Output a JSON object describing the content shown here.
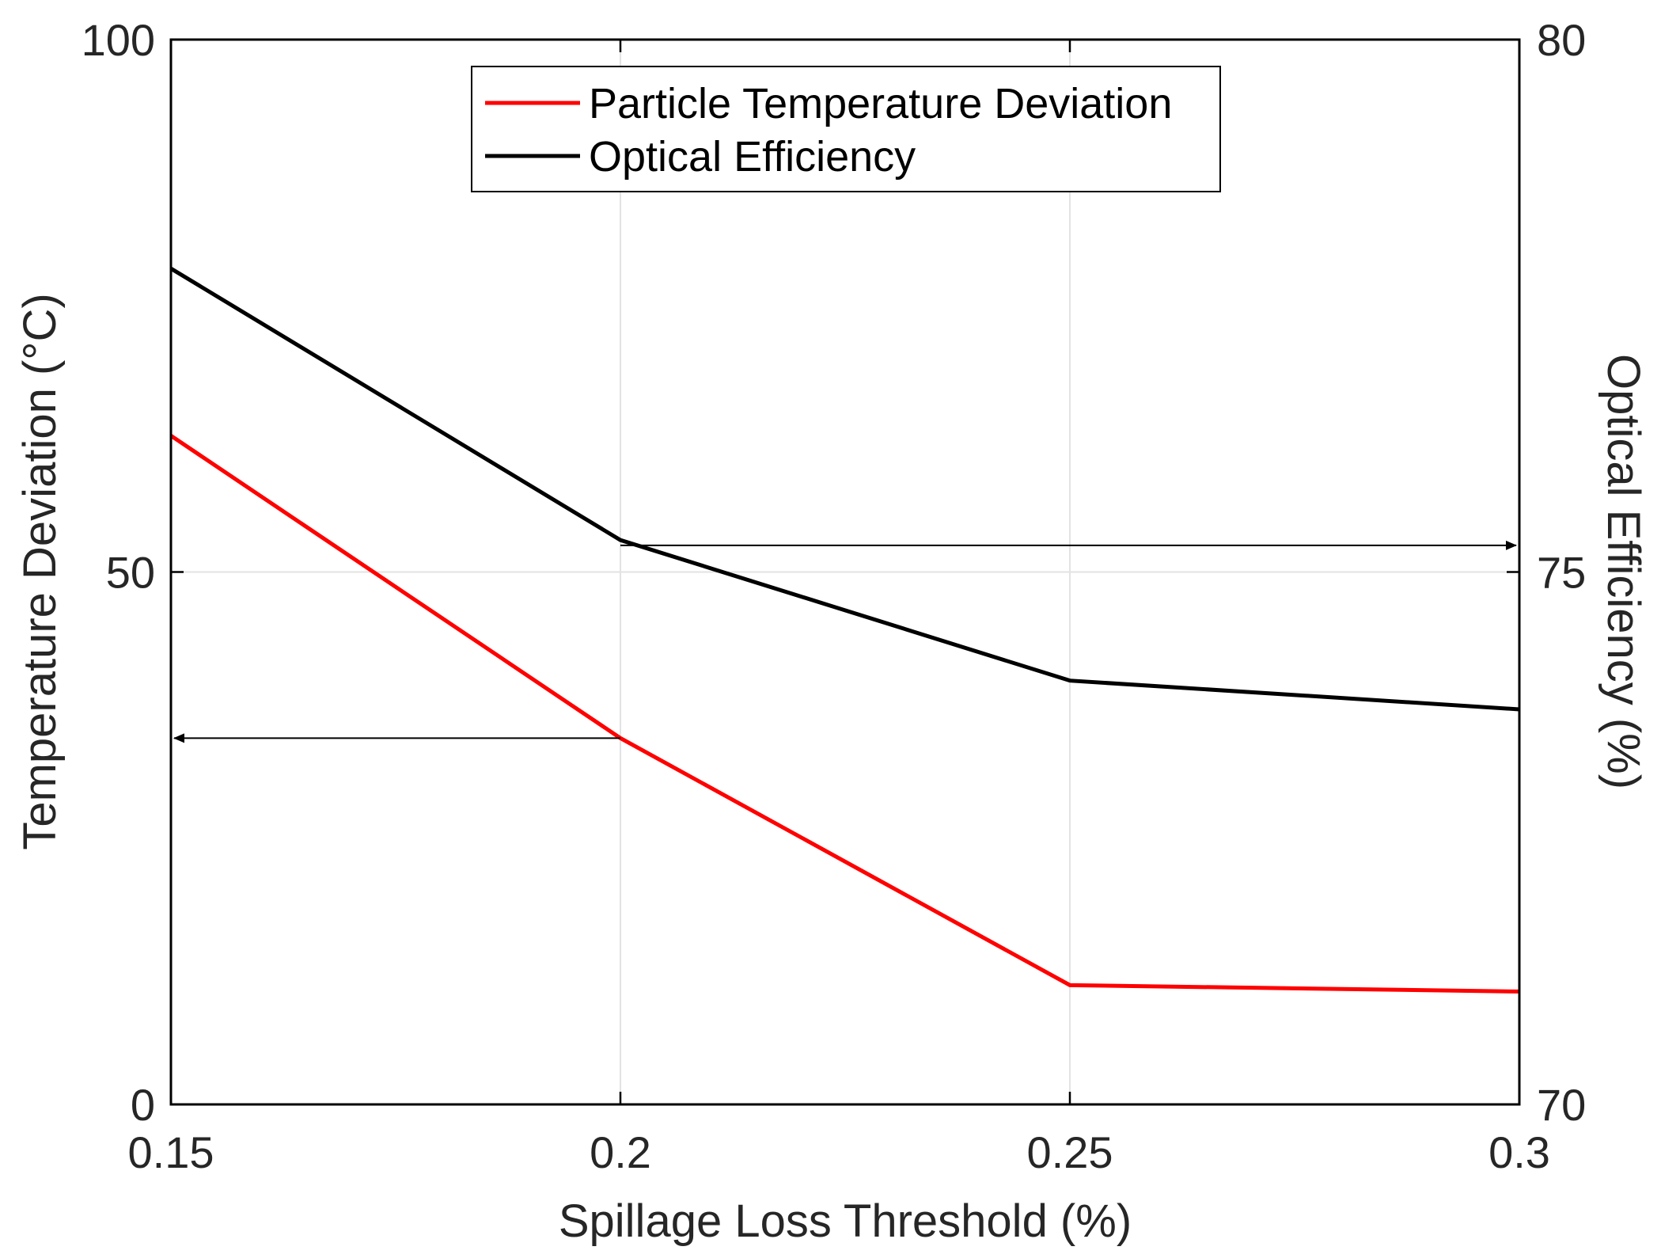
{
  "chart_data": {
    "type": "line",
    "x": [
      0.15,
      0.2,
      0.25,
      0.3
    ],
    "x_ticks": [
      "0.15",
      "0.2",
      "0.25",
      "0.3"
    ],
    "xlabel": "Spillage Loss Threshold (%)",
    "xlim": [
      0.15,
      0.3
    ],
    "ylabel_left": "Temperature Deviation (°C)",
    "ylim_left": [
      0,
      100
    ],
    "y_ticks_left": [
      "0",
      "50",
      "100"
    ],
    "ylabel_right": "Optical Efficiency (%)",
    "ylim_right": [
      70,
      80
    ],
    "y_ticks_right": [
      "70",
      "75",
      "80"
    ],
    "grid": true,
    "legend_position": "top-center",
    "series": [
      {
        "name": "Particle Temperature Deviation",
        "axis": "left",
        "color": "#ff0000",
        "values": [
          62.8,
          34.4,
          11.2,
          10.6
        ]
      },
      {
        "name": "Optical Efficiency",
        "axis": "right",
        "color": "#000000",
        "values": [
          77.85,
          75.3,
          73.98,
          73.71
        ]
      }
    ],
    "annotations": [
      {
        "type": "arrow",
        "direction": "left",
        "from_x": 0.2,
        "to_x": 0.15,
        "axis": "left",
        "y": 34.4
      },
      {
        "type": "arrow",
        "direction": "right",
        "from_x": 0.2,
        "to_x": 0.3,
        "axis": "right",
        "y": 75.25
      }
    ]
  }
}
